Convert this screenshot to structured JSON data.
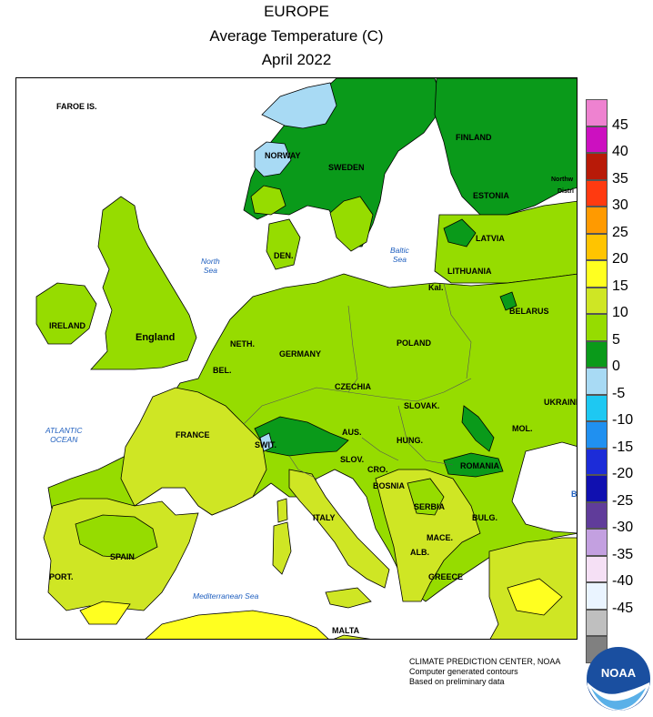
{
  "title": {
    "line1": "EUROPE",
    "line2": "Average Temperature (C)",
    "line3": "April 2022"
  },
  "legend": {
    "bins": [
      {
        "label": "45",
        "color": "#ee82d0"
      },
      {
        "label": "40",
        "color": "#cc10c0"
      },
      {
        "label": "35",
        "color": "#b81a08"
      },
      {
        "label": "30",
        "color": "#ff3a10"
      },
      {
        "label": "25",
        "color": "#ff9a00"
      },
      {
        "label": "20",
        "color": "#ffc400"
      },
      {
        "label": "15",
        "color": "#ffff20"
      },
      {
        "label": "10",
        "color": "#cfe624"
      },
      {
        "label": "5",
        "color": "#96dc00"
      },
      {
        "label": "0",
        "color": "#0a9a1a"
      },
      {
        "label": "-5",
        "color": "#a8daf4"
      },
      {
        "label": "-10",
        "color": "#1ec8f2"
      },
      {
        "label": "-15",
        "color": "#2090f0"
      },
      {
        "label": "-20",
        "color": "#1c2cd8"
      },
      {
        "label": "-25",
        "color": "#1010b0"
      },
      {
        "label": "-30",
        "color": "#603c9a"
      },
      {
        "label": "-35",
        "color": "#c3a0e0"
      },
      {
        "label": "-40",
        "color": "#f5e0f5"
      },
      {
        "label": "-45",
        "color": "#eaf4ff"
      },
      {
        "label": "",
        "color": "#bfbfbf"
      },
      {
        "label": "",
        "color": "#808080"
      }
    ]
  },
  "map_labels": {
    "faroe": "FAROE IS.",
    "norway": "NORWAY",
    "sweden": "SWEDEN",
    "finland": "FINLAND",
    "estonia": "ESTONIA",
    "northwest": "Northw",
    "district": "Distri",
    "latvia": "LATVIA",
    "lithuania": "LITHUANIA",
    "kal": "Kal.",
    "belarus": "BELARUS",
    "ireland": "IRELAND",
    "england": "England",
    "den": "DEN.",
    "neth": "NETH.",
    "bel": "BEL.",
    "germany": "GERMANY",
    "poland": "POLAND",
    "czechia": "CZECHIA",
    "slovak": "SLOVAK.",
    "ukraine": "UKRAINE",
    "mol": "MOL.",
    "france": "FRANCE",
    "swit": "SWIT.",
    "aus": "AUS.",
    "hung": "HUNG.",
    "slov": "SLOV.",
    "cro": "CRO.",
    "bosnia": "BOSNIA",
    "romania": "ROMANIA",
    "serbia": "SERBIA",
    "bulg": "BULG.",
    "italy": "ITALY",
    "mace": "MACE.",
    "alb": "ALB.",
    "greece": "GREECE",
    "spain": "SPAIN",
    "port": "PORT.",
    "malta": "MALTA",
    "b": "B"
  },
  "seas": {
    "north_sea": "North\nSea",
    "baltic_sea": "Baltic\nSea",
    "atlantic": "ATLANTIC\nOCEAN",
    "mediterranean": "Mediterranean Sea"
  },
  "credit": {
    "line1": "CLIMATE PREDICTION CENTER, NOAA",
    "line2": "Computer generated contours",
    "line3": "Based on preliminary data"
  },
  "logo": {
    "text": "NOAA"
  }
}
